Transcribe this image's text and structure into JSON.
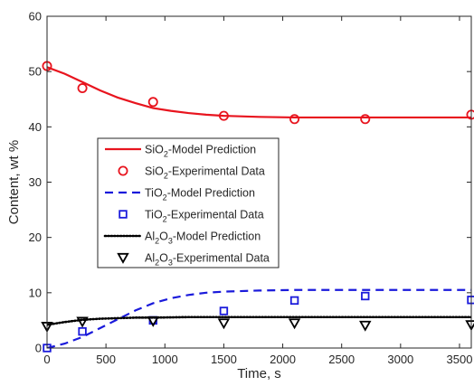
{
  "chart_data": {
    "type": "line",
    "xlabel": "Time, s",
    "ylabel": "Content, wt %",
    "xlim": [
      0,
      3600
    ],
    "ylim": [
      0,
      60
    ],
    "x_ticks": [
      "0",
      "500",
      "1000",
      "1500",
      "2000",
      "2500",
      "3000",
      "3500"
    ],
    "y_ticks": [
      "0",
      "10",
      "20",
      "30",
      "40",
      "50",
      "60"
    ],
    "grid": false,
    "legend_position": "center-left",
    "colors": {
      "sio2": "#e8141e",
      "tio2": "#1a1adb",
      "al2o3": "#000000"
    },
    "series": [
      {
        "name": "SiO2-Model Prediction",
        "legend_parts": [
          "SiO",
          "2",
          "-Model Prediction"
        ],
        "kind": "line",
        "style": "solid",
        "color": "#e8141e",
        "x": [
          0,
          150,
          300,
          450,
          600,
          750,
          900,
          1050,
          1200,
          1350,
          1500,
          1800,
          2100,
          2400,
          2700,
          3000,
          3300,
          3600
        ],
        "y": [
          50.8,
          49.6,
          48.1,
          46.6,
          45.3,
          44.3,
          43.4,
          42.9,
          42.5,
          42.2,
          42.0,
          41.8,
          41.7,
          41.7,
          41.7,
          41.7,
          41.7,
          41.7
        ]
      },
      {
        "name": "SiO2-Experimental Data",
        "legend_parts": [
          "SiO",
          "2",
          "-Experimental Data"
        ],
        "kind": "scatter",
        "marker": "circle",
        "color": "#e8141e",
        "x": [
          0,
          300,
          900,
          1500,
          2100,
          2700,
          3600
        ],
        "y": [
          51.0,
          47.0,
          44.5,
          42.0,
          41.4,
          41.4,
          42.2
        ]
      },
      {
        "name": "TiO2-Model Prediction",
        "legend_parts": [
          "TiO",
          "2",
          "-Model Prediction"
        ],
        "kind": "line",
        "style": "dashed",
        "color": "#1a1adb",
        "x": [
          0,
          150,
          300,
          450,
          600,
          750,
          900,
          1050,
          1200,
          1350,
          1500,
          1800,
          2100,
          2400,
          2700,
          3000,
          3300,
          3600
        ],
        "y": [
          0.0,
          0.8,
          2.0,
          3.6,
          5.2,
          6.8,
          8.1,
          9.0,
          9.6,
          10.0,
          10.2,
          10.4,
          10.5,
          10.5,
          10.5,
          10.5,
          10.5,
          10.5
        ]
      },
      {
        "name": "TiO2-Experimental Data",
        "legend_parts": [
          "TiO",
          "2",
          "-Experimental Data"
        ],
        "kind": "scatter",
        "marker": "square",
        "color": "#1a1adb",
        "x": [
          0,
          300,
          900,
          1500,
          2100,
          2700,
          3600
        ],
        "y": [
          0.0,
          3.0,
          5.0,
          6.7,
          8.6,
          9.4,
          8.7
        ]
      },
      {
        "name": "Al2O3-Model Prediction",
        "legend_parts": [
          "Al",
          "2",
          "O",
          "3",
          "-Model Prediction"
        ],
        "kind": "line",
        "style": "dotted",
        "color": "#000000",
        "x": [
          0,
          150,
          300,
          450,
          600,
          750,
          900,
          1200,
          1500,
          2100,
          2700,
          3600
        ],
        "y": [
          4.2,
          4.7,
          5.1,
          5.3,
          5.4,
          5.5,
          5.5,
          5.6,
          5.6,
          5.6,
          5.6,
          5.6
        ]
      },
      {
        "name": "Al2O3-Experimental Data",
        "legend_parts": [
          "Al",
          "2",
          "O",
          "3",
          "-Experimental Data"
        ],
        "kind": "scatter",
        "marker": "triangle-down",
        "color": "#000000",
        "x": [
          0,
          300,
          900,
          1500,
          2100,
          2700,
          3600
        ],
        "y": [
          3.9,
          4.8,
          4.9,
          4.5,
          4.5,
          4.1,
          4.2
        ]
      }
    ]
  }
}
